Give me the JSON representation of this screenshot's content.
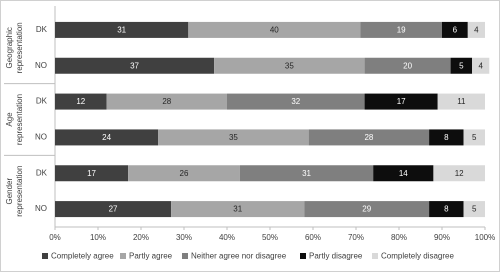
{
  "chart_data": {
    "type": "stacked-barh",
    "groups": [
      [
        "Geographic",
        "representation"
      ],
      [
        "Age",
        "representation"
      ],
      [
        "Gender",
        "representation"
      ]
    ],
    "categories": [
      "DK",
      "NO",
      "DK",
      "NO",
      "DK",
      "NO"
    ],
    "series": [
      {
        "name": "Completely agree",
        "color": "#404040",
        "values": [
          31,
          37,
          12,
          24,
          17,
          27
        ]
      },
      {
        "name": "Partly agree",
        "color": "#a6a6a6",
        "values": [
          40,
          35,
          28,
          35,
          26,
          31
        ]
      },
      {
        "name": "Neither agree nor disagree",
        "color": "#7f7f7f",
        "values": [
          19,
          20,
          32,
          28,
          31,
          29
        ]
      },
      {
        "name": "Partly disagree",
        "color": "#0d0d0d",
        "values": [
          6,
          5,
          17,
          8,
          14,
          8
        ]
      },
      {
        "name": "Completely disagree",
        "color": "#d9d9d9",
        "values": [
          4,
          4,
          11,
          5,
          12,
          5
        ]
      }
    ],
    "xlim": [
      0,
      100
    ],
    "xticks": [
      {
        "value": 0,
        "label": "0%"
      },
      {
        "value": 10,
        "label": "10%"
      },
      {
        "value": 20,
        "label": "20%"
      },
      {
        "value": 30,
        "label": "30%"
      },
      {
        "value": 40,
        "label": "40%"
      },
      {
        "value": 50,
        "label": "50%"
      },
      {
        "value": 60,
        "label": "60%"
      },
      {
        "value": 70,
        "label": "70%"
      },
      {
        "value": 80,
        "label": "80%"
      },
      {
        "value": 90,
        "label": "90%"
      },
      {
        "value": 100,
        "label": "100%"
      }
    ],
    "legend": "bottom"
  }
}
